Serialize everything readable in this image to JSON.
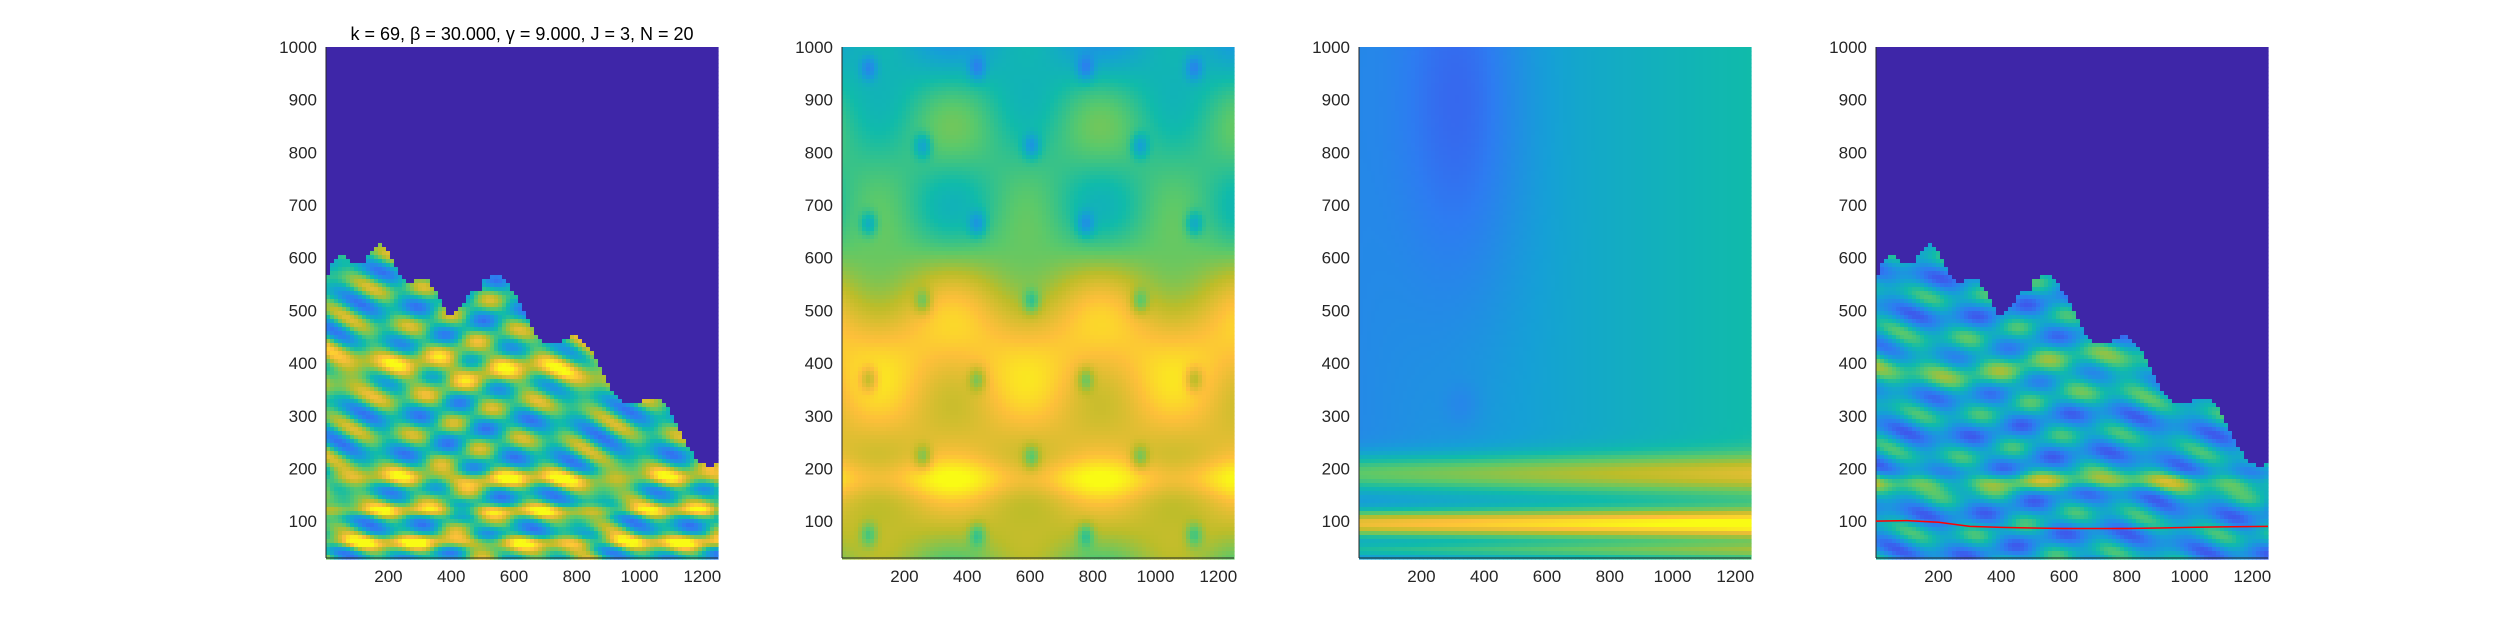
{
  "figure": {
    "title": "k = 69, β = 30.000, γ = 9.000, J = 3, N = 20"
  },
  "chart_data": [
    {
      "type": "heatmap",
      "panel": 1,
      "title": "k = 69, β = 30.000, γ = 9.000, J = 3, N = 20",
      "xlabel": "",
      "ylabel": "",
      "xlim": [
        1,
        1250
      ],
      "ylim": [
        30,
        1000
      ],
      "xticks": [
        200,
        400,
        600,
        800,
        1000,
        1200
      ],
      "yticks": [
        100,
        200,
        300,
        400,
        500,
        600,
        700,
        800,
        900,
        1000
      ],
      "colormap": "parula",
      "background_color": "#3E26A8",
      "content": "thresholded ridge map; colored region below roughly 630 at left, sloping down to about 170 at right"
    },
    {
      "type": "heatmap",
      "panel": 2,
      "title": "",
      "xlabel": "",
      "ylabel": "",
      "xlim": [
        1,
        1250
      ],
      "ylim": [
        30,
        1000
      ],
      "xticks": [
        200,
        400,
        600,
        800,
        1000,
        1200
      ],
      "yticks": [
        100,
        200,
        300,
        400,
        500,
        600,
        700,
        800,
        900,
        1000
      ],
      "colormap": "parula",
      "content": "full-field magnitude; yellow band between 150 and 500, teal-green elsewhere"
    },
    {
      "type": "heatmap",
      "panel": 3,
      "title": "",
      "xlabel": "",
      "ylabel": "",
      "xlim": [
        1,
        1250
      ],
      "ylim": [
        30,
        1000
      ],
      "xticks": [
        200,
        400,
        600,
        800,
        1000,
        1200
      ],
      "yticks": [
        100,
        200,
        300,
        400,
        500,
        600,
        700,
        800,
        900,
        1000
      ],
      "colormap": "parula",
      "content": "smooth field; blue above 250, bright band near 80-120, dark minimum near x=300, y=950"
    },
    {
      "type": "heatmap",
      "panel": 4,
      "title": "",
      "xlabel": "",
      "ylabel": "",
      "xlim": [
        1,
        1250
      ],
      "ylim": [
        30,
        1000
      ],
      "xticks": [
        200,
        400,
        600,
        800,
        1000,
        1200
      ],
      "yticks": [
        100,
        200,
        300,
        400,
        500,
        600,
        700,
        800,
        900,
        1000
      ],
      "colormap": "parula",
      "background_color": "#3E26A8",
      "overlay_line": {
        "color": "#FF0000",
        "x": [
          1,
          100,
          200,
          300,
          400,
          500,
          600,
          700,
          800,
          900,
          1000,
          1100,
          1250
        ],
        "y": [
          100,
          101,
          98,
          90,
          88,
          87,
          86,
          86,
          86,
          87,
          88,
          89,
          90
        ]
      }
    }
  ]
}
